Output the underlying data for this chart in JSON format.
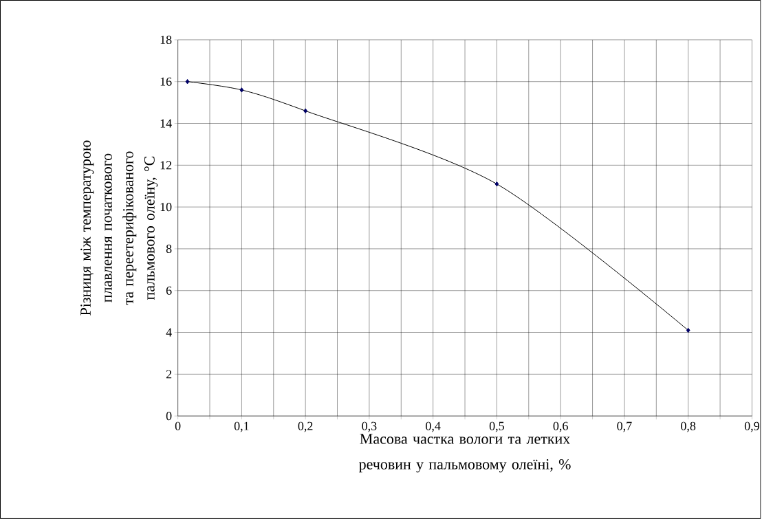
{
  "chart_data": {
    "type": "line",
    "xlabel": "Масова частка вологи та летких речовин у пальмовому олеїні, %",
    "ylabel": "Різниця між температурою плавлення початкового та переетерифікованого пальмового олеїну, °C",
    "x": [
      0.015,
      0.1,
      0.2,
      0.5,
      0.8
    ],
    "series": [
      {
        "color": "#000066",
        "values": [
          16,
          15.6,
          14.6,
          11.1,
          4.1
        ]
      }
    ],
    "marker": "diamond",
    "line_style": "solid",
    "grid": true,
    "xlim": [
      0,
      0.9
    ],
    "ylim": [
      0,
      18
    ],
    "xticks": [
      0,
      {
        "value": 0.05,
        "label": null
      },
      {
        "value": 0.1,
        "label": "0,1"
      },
      {
        "value": 0.15,
        "label": null
      },
      {
        "value": 0.2,
        "label": "0,2"
      },
      {
        "value": 0.25,
        "label": null
      },
      {
        "value": 0.3,
        "label": "0,3"
      },
      {
        "value": 0.35,
        "label": null
      },
      {
        "value": 0.4,
        "label": "0,4"
      },
      {
        "value": 0.45,
        "label": null
      },
      {
        "value": 0.5,
        "label": "0,5"
      },
      {
        "value": 0.55,
        "label": null
      },
      {
        "value": 0.6,
        "label": "0,6"
      },
      {
        "value": 0.65,
        "label": null
      },
      {
        "value": 0.7,
        "label": "0,7"
      },
      {
        "value": 0.75,
        "label": null
      },
      {
        "value": 0.8,
        "label": "0,8"
      },
      {
        "value": 0.85,
        "label": null
      },
      {
        "value": 0.9,
        "label": "0,9"
      }
    ],
    "yticks": [
      0,
      2,
      4,
      6,
      8,
      10,
      12,
      14,
      16,
      18
    ]
  }
}
